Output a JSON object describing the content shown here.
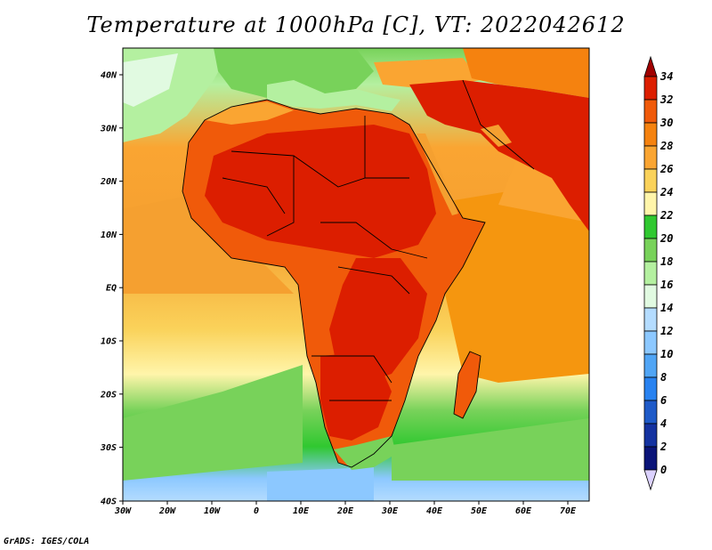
{
  "title": "Temperature at 1000hPa [C], VT: 2022042612",
  "footer": "GrADS: IGES/COLA",
  "map": {
    "lat_labels": [
      "40N",
      "30N",
      "20N",
      "10N",
      "EQ",
      "10S",
      "20S",
      "30S",
      "40S"
    ],
    "lon_labels": [
      "30W",
      "20W",
      "10W",
      "0",
      "10E",
      "20E",
      "30E",
      "40E",
      "50E",
      "60E",
      "70E"
    ]
  },
  "colorbar": {
    "labels": [
      "34",
      "32",
      "30",
      "28",
      "26",
      "24",
      "22",
      "20",
      "18",
      "16",
      "14",
      "12",
      "10",
      "8",
      "6",
      "4",
      "2",
      "0"
    ],
    "colors": [
      "#a00000",
      "#dc1e00",
      "#f05a0a",
      "#f5820f",
      "#faa532",
      "#fad25a",
      "#fff5aa",
      "#30c830",
      "#78d25a",
      "#b4f0a0",
      "#e1fae1",
      "#b4dcff",
      "#8cc8ff",
      "#50a5f5",
      "#2882f0",
      "#1e5ac8",
      "#1432a0",
      "#0a1478"
    ]
  }
}
